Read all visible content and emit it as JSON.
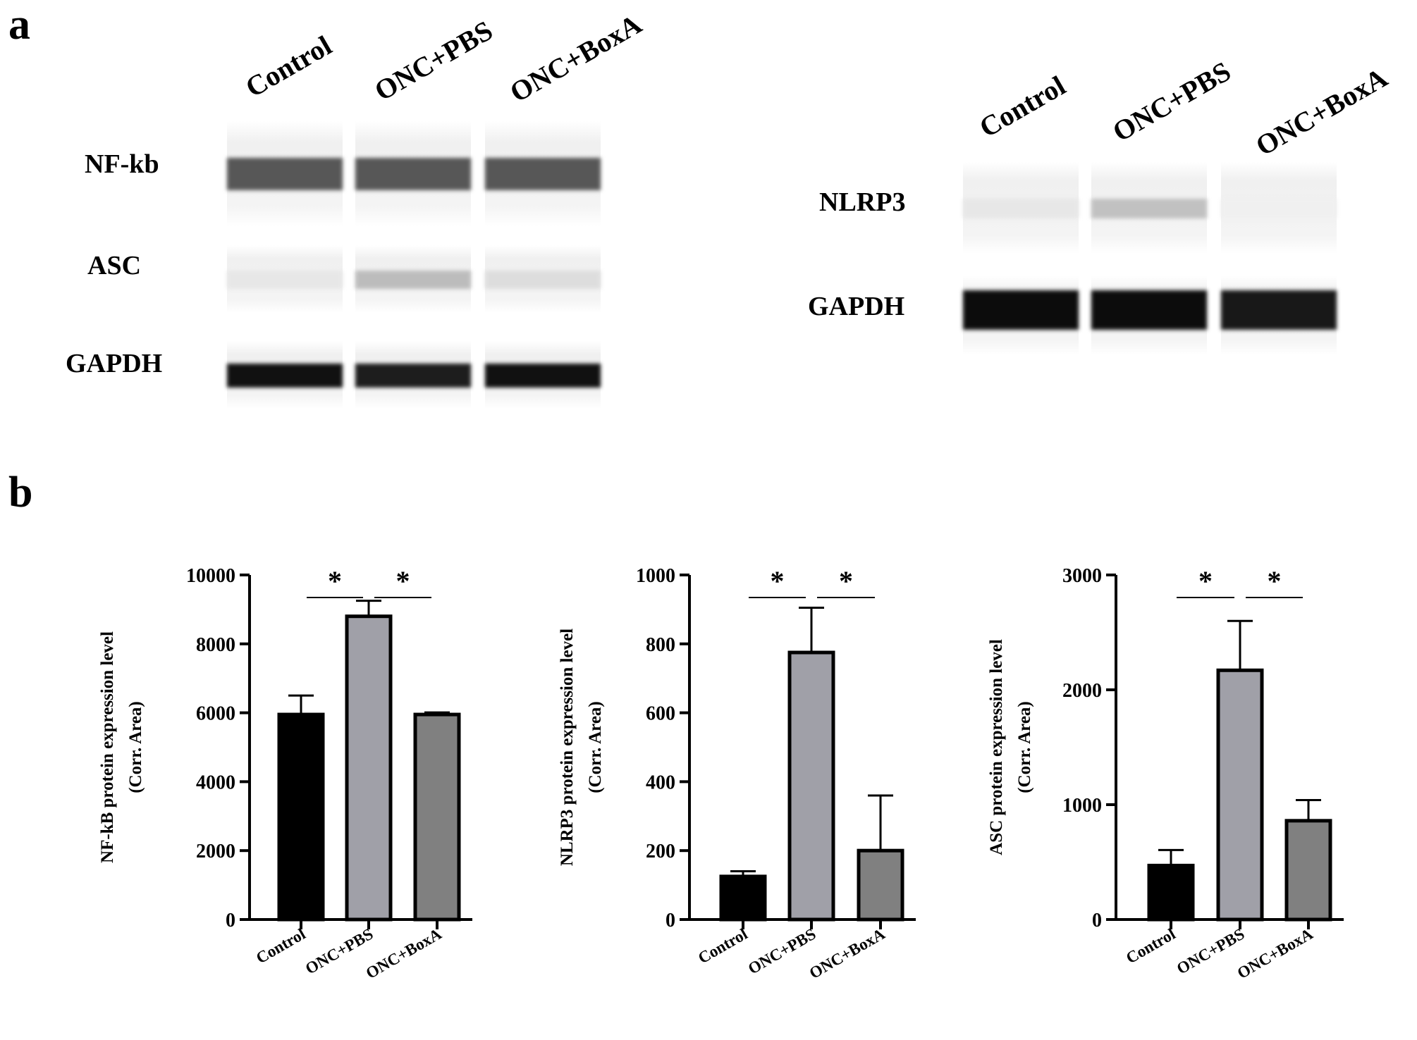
{
  "panels": {
    "a": "a",
    "b": "b"
  },
  "blots": [
    {
      "lanes": [
        "Control",
        "ONC+PBS",
        "ONC+BoxA"
      ],
      "rows": [
        {
          "label": "NF-kb",
          "bands": [
            0.65,
            0.65,
            0.65
          ]
        },
        {
          "label": "ASC",
          "bands": [
            0.04,
            0.22,
            0.08
          ]
        },
        {
          "label": "GAPDH",
          "bands": [
            0.95,
            0.9,
            0.95
          ]
        }
      ]
    },
    {
      "lanes": [
        "Control",
        "ONC+PBS",
        "ONC+BoxA"
      ],
      "rows": [
        {
          "label": "NLRP3",
          "bands": [
            0.04,
            0.2,
            0.0
          ]
        },
        {
          "label": "GAPDH",
          "bands": [
            0.97,
            0.97,
            0.92
          ]
        }
      ]
    }
  ],
  "chart_data": [
    {
      "type": "bar",
      "categories": [
        "Control",
        "ONC+PBS",
        "ONC+BoxA"
      ],
      "values": [
        5950,
        8800,
        5950
      ],
      "errors": [
        550,
        450,
        60
      ],
      "ylabel": "NF-kB protein expression level",
      "ylabel2": "(Corr. Area)",
      "ylim": [
        0,
        10000
      ],
      "yticks": [
        "0",
        "2000",
        "4000",
        "6000",
        "8000",
        "10000"
      ],
      "significance": [
        [
          "Control",
          "ONC+PBS",
          "*"
        ],
        [
          "ONC+PBS",
          "ONC+BoxA",
          "*"
        ]
      ],
      "colors": [
        "#000000",
        "#a0a0a8",
        "#808080"
      ],
      "grid": false
    },
    {
      "type": "bar",
      "categories": [
        "Control",
        "ONC+PBS",
        "ONC+BoxA"
      ],
      "values": [
        125,
        775,
        200
      ],
      "errors": [
        15,
        130,
        160
      ],
      "ylabel": "NLRP3 protein expression level",
      "ylabel2": "(Corr. Area)",
      "ylim": [
        0,
        1000
      ],
      "yticks": [
        "0",
        "200",
        "400",
        "600",
        "800",
        "1000"
      ],
      "significance": [
        [
          "Control",
          "ONC+PBS",
          "*"
        ],
        [
          "ONC+PBS",
          "ONC+BoxA",
          "*"
        ]
      ],
      "colors": [
        "#000000",
        "#a0a0a8",
        "#808080"
      ],
      "grid": false
    },
    {
      "type": "bar",
      "categories": [
        "Control",
        "ONC+PBS",
        "ONC+BoxA"
      ],
      "values": [
        470,
        2170,
        860
      ],
      "errors": [
        135,
        430,
        180
      ],
      "ylabel": "ASC protein expression level",
      "ylabel2": "(Corr. Area)",
      "ylim": [
        0,
        3000
      ],
      "yticks": [
        "0",
        "1000",
        "2000",
        "3000"
      ],
      "significance": [
        [
          "Control",
          "ONC+PBS",
          "*"
        ],
        [
          "ONC+PBS",
          "ONC+BoxA",
          "*"
        ]
      ],
      "colors": [
        "#000000",
        "#a0a0a8",
        "#808080"
      ],
      "grid": false
    }
  ]
}
